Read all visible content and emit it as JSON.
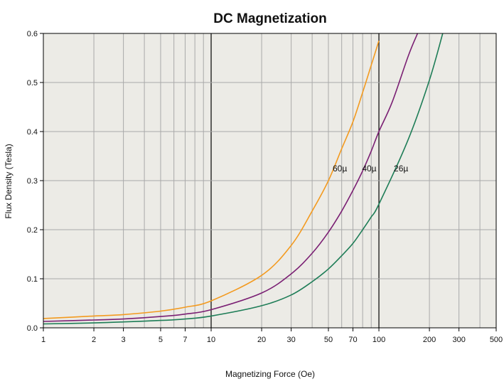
{
  "chart_data": {
    "type": "line",
    "title": "DC Magnetization",
    "xlabel": "Magnetizing Force (Oe)",
    "ylabel": "Flux Density (Tesla)",
    "x_scale": "log",
    "xlim": [
      1,
      500
    ],
    "ylim": [
      0,
      0.6
    ],
    "grid": true,
    "background": "#ecebe6",
    "grid_color": "#a9a9a9",
    "decade_line_color": "#000000",
    "x_ticks": [
      1,
      2,
      3,
      5,
      7,
      10,
      20,
      30,
      50,
      70,
      100,
      200,
      300,
      500
    ],
    "x_tick_labels": [
      "1",
      "2",
      "3",
      "5",
      "7",
      "10",
      "20",
      "30",
      "50",
      "70",
      "100",
      "200",
      "300",
      "500"
    ],
    "x_grid": [
      1,
      2,
      3,
      4,
      5,
      6,
      7,
      8,
      9,
      10,
      20,
      30,
      40,
      50,
      60,
      70,
      80,
      90,
      100,
      200,
      300,
      400,
      500
    ],
    "y_ticks": [
      0.0,
      0.1,
      0.2,
      0.3,
      0.4,
      0.5,
      0.6
    ],
    "y_tick_labels": [
      "0.0",
      "0.1",
      "0.2",
      "0.3",
      "0.4",
      "0.5",
      "0.6"
    ],
    "series": [
      {
        "name": "60µ",
        "color": "#f39a1f",
        "x": [
          1,
          2,
          3,
          5,
          7,
          10,
          20,
          30,
          40,
          50,
          60,
          70,
          80,
          90,
          100
        ],
        "y": [
          0.019,
          0.024,
          0.027,
          0.034,
          0.042,
          0.055,
          0.107,
          0.168,
          0.238,
          0.3,
          0.365,
          0.42,
          0.48,
          0.535,
          0.585
        ]
      },
      {
        "name": "40µ",
        "color": "#7a1f73",
        "x": [
          1,
          2,
          3,
          5,
          7,
          10,
          20,
          30,
          40,
          50,
          60,
          70,
          80,
          90,
          100,
          120,
          150,
          170
        ],
        "y": [
          0.013,
          0.016,
          0.018,
          0.023,
          0.028,
          0.037,
          0.071,
          0.11,
          0.152,
          0.195,
          0.238,
          0.28,
          0.32,
          0.36,
          0.4,
          0.46,
          0.555,
          0.6
        ]
      },
      {
        "name": "26µ",
        "color": "#1e7d57",
        "x": [
          1,
          2,
          3,
          5,
          7,
          10,
          20,
          30,
          40,
          50,
          60,
          70,
          80,
          90,
          100,
          150,
          200,
          240
        ],
        "y": [
          0.008,
          0.01,
          0.012,
          0.015,
          0.018,
          0.024,
          0.045,
          0.067,
          0.094,
          0.12,
          0.147,
          0.172,
          0.2,
          0.226,
          0.252,
          0.385,
          0.505,
          0.6
        ]
      }
    ]
  }
}
